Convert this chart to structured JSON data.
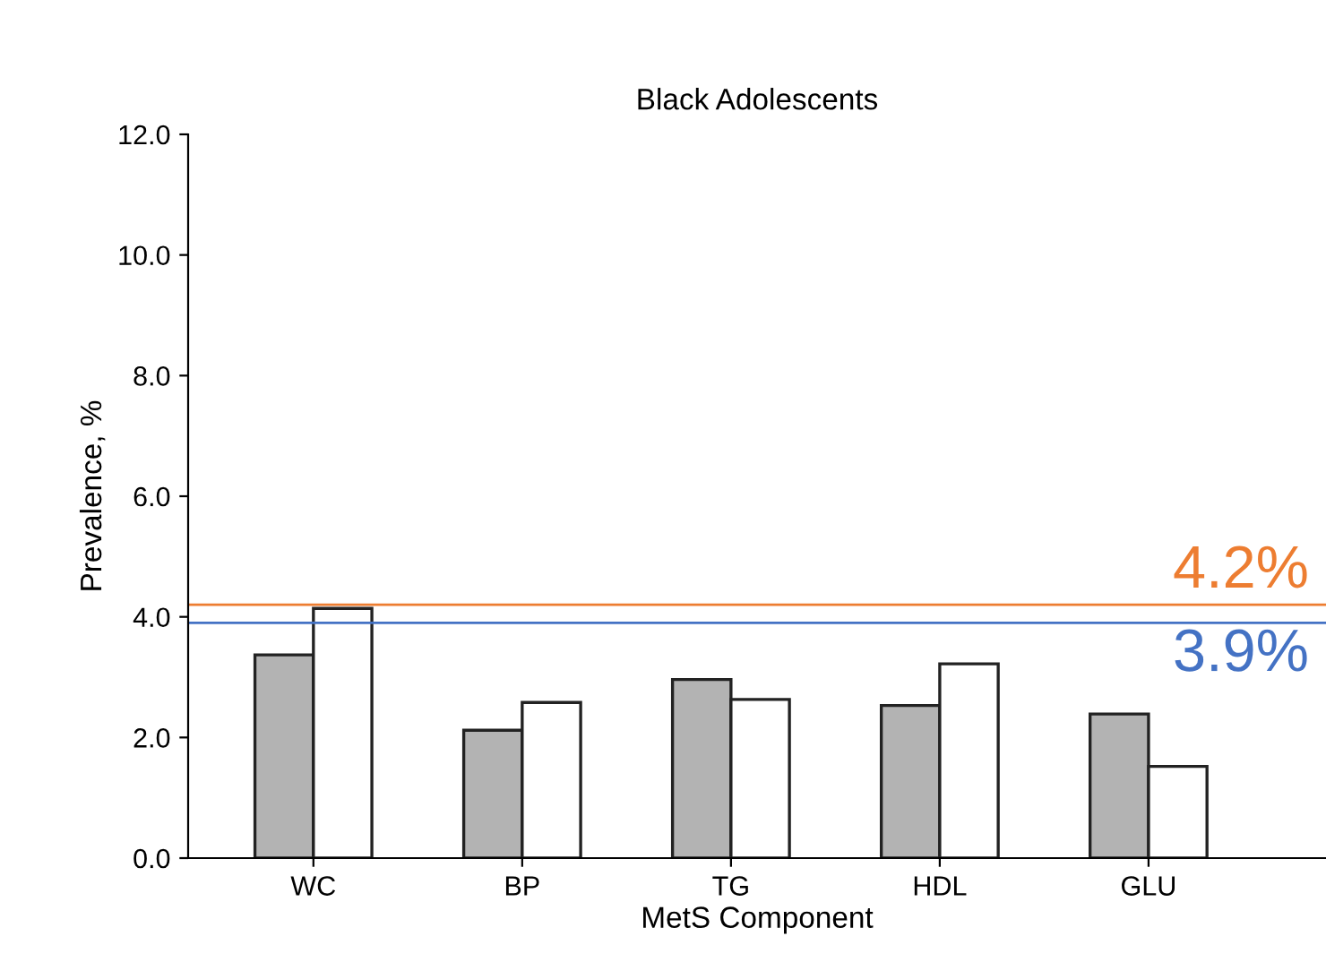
{
  "chart_data": {
    "type": "bar",
    "title": "Black Adolescents",
    "xlabel": "MetS Component",
    "ylabel": "Prevalence, %",
    "categories": [
      "WC",
      "BP",
      "TG",
      "HDL",
      "GLU"
    ],
    "series": [
      {
        "color": "#b3b3b3",
        "values": [
          3.37,
          2.12,
          2.96,
          2.53,
          2.39
        ]
      },
      {
        "color": "#ffffff",
        "values": [
          4.14,
          2.58,
          2.63,
          3.22,
          1.52
        ]
      }
    ],
    "ylim": [
      0,
      12
    ],
    "yticks": [
      {
        "value": 0,
        "label": "0.0"
      },
      {
        "value": 2,
        "label": "2.0"
      },
      {
        "value": 4,
        "label": "4.0"
      },
      {
        "value": 6,
        "label": "6.0"
      },
      {
        "value": 8,
        "label": "8.0"
      },
      {
        "value": 10,
        "label": "10.0"
      },
      {
        "value": 12,
        "label": "12.0"
      }
    ],
    "ref_lines": [
      {
        "axis": "y",
        "value": 4.2,
        "label": "4.2%",
        "color": "#ed7d31"
      },
      {
        "axis": "y",
        "value": 3.9,
        "label": "3.9%",
        "color": "#4472c4"
      }
    ],
    "grid": false,
    "legend": false
  }
}
